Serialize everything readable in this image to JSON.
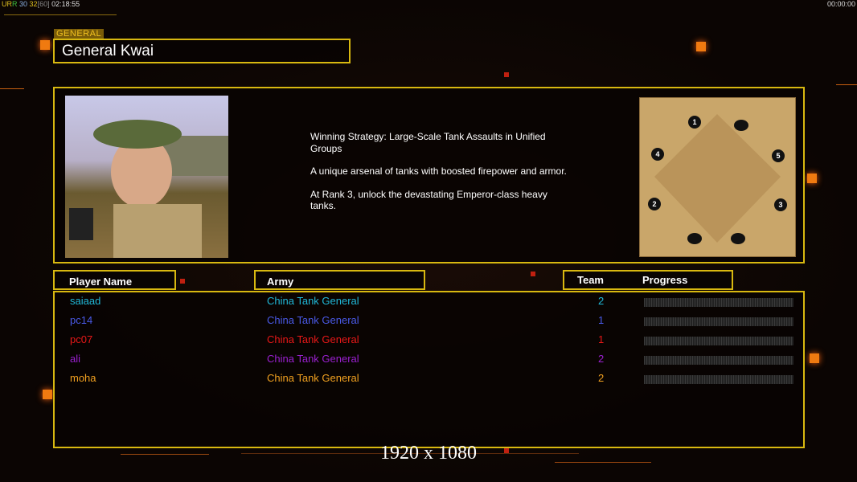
{
  "hud": {
    "ur": "UR",
    "fps1": "30",
    "fps2": "32",
    "cap": "[60]",
    "time": "02:18:55",
    "clock": "00:00:00"
  },
  "general": {
    "label": "GENERAL",
    "name": "General Kwai"
  },
  "description": [
    "Winning Strategy: Large-Scale Tank Assaults in Unified Groups",
    "A unique arsenal of tanks with boosted firepower and armor.",
    "At Rank 3, unlock the devastating Emperor-class heavy tanks."
  ],
  "headers": {
    "player": "Player Name",
    "army": "Army",
    "team": "Team",
    "progress": "Progress"
  },
  "players": [
    {
      "name": "saiaad",
      "army": "China Tank General",
      "team": "2",
      "color": "#20b8d8",
      "progress": 0
    },
    {
      "name": "pc14",
      "army": "China Tank General",
      "team": "1",
      "color": "#4a5ae8",
      "progress": 0
    },
    {
      "name": "pc07",
      "army": "China Tank General",
      "team": "1",
      "color": "#e81818",
      "progress": 0
    },
    {
      "name": "ali",
      "army": "China Tank General",
      "team": "2",
      "color": "#9a20d0",
      "progress": 0
    },
    {
      "name": "moha",
      "army": "China Tank General",
      "team": "2",
      "color": "#f0a020",
      "progress": 0
    }
  ],
  "map": {
    "start_positions": [
      "1",
      "2",
      "3",
      "4",
      "5"
    ]
  },
  "resolution": "1920 x 1080"
}
